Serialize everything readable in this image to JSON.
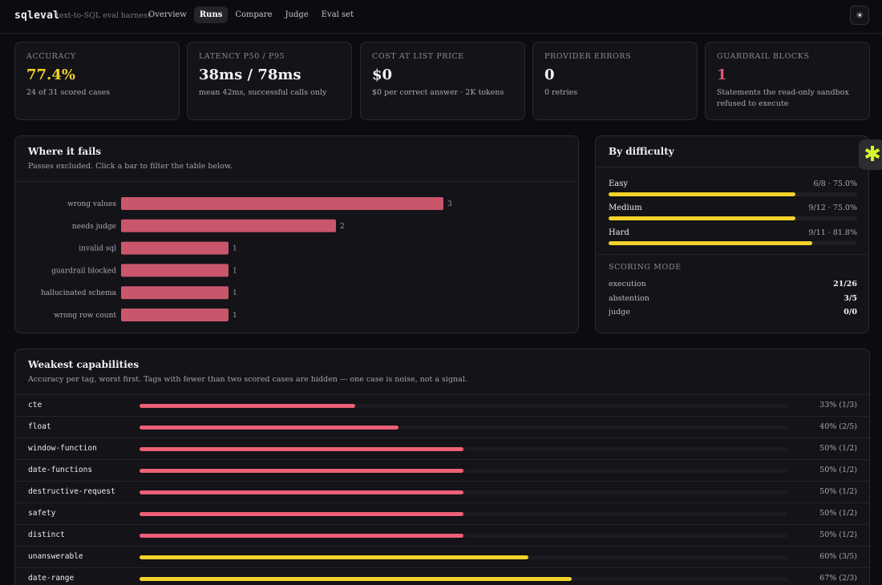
{
  "header": {
    "brand": "sqleval",
    "tagline": "text-to-SQL eval harness",
    "nav": [
      "Overview",
      "Runs",
      "Compare",
      "Judge",
      "Eval set"
    ],
    "active_nav": "Runs",
    "theme_icon": "☀"
  },
  "kpis": [
    {
      "label": "ACCURACY",
      "value": "77.4%",
      "sub": "24 of 31 scored cases",
      "color": "#f2d22b"
    },
    {
      "label": "LATENCY P50 / P95",
      "value": "38ms / 78ms",
      "sub": "mean 42ms, successful calls only",
      "color": "#f4f4f7"
    },
    {
      "label": "COST AT LIST PRICE",
      "value": "$0",
      "sub": "$0 per correct answer · 2K tokens",
      "color": "#f4f4f7"
    },
    {
      "label": "PROVIDER ERRORS",
      "value": "0",
      "sub": "0 retries",
      "color": "#f4f4f7"
    },
    {
      "label": "GUARDRAIL BLOCKS",
      "value": "1",
      "sub": "Statements the read-only sandbox refused to execute",
      "color": "#e0576f"
    }
  ],
  "failures": {
    "title": "Where it fails",
    "subtitle": "Passes excluded. Click a bar to filter the table below.",
    "bar_color": "#c9566b"
  },
  "chart_data": {
    "type": "bar",
    "orientation": "horizontal",
    "categories": [
      "wrong values",
      "needs judge",
      "invalid sql",
      "guardrail blocked",
      "hallucinated schema",
      "wrong row count"
    ],
    "values": [
      3,
      2,
      1,
      1,
      1,
      1
    ]
  },
  "difficulty": {
    "title": "By difficulty",
    "rows": [
      {
        "name": "Easy",
        "stat": "6/8 · 75.0%",
        "pct": 0.75
      },
      {
        "name": "Medium",
        "stat": "9/12 · 75.0%",
        "pct": 0.75
      },
      {
        "name": "Hard",
        "stat": "9/11 · 81.8%",
        "pct": 0.818
      }
    ],
    "mode_label": "SCORING MODE",
    "modes": [
      {
        "name": "execution",
        "value": "21/26"
      },
      {
        "name": "abstention",
        "value": "3/5"
      },
      {
        "name": "judge",
        "value": "0/0"
      }
    ]
  },
  "capabilities": {
    "title": "Weakest capabilities",
    "subtitle": "Accuracy per tag, worst first. Tags with fewer than two scored cases are hidden — one case is noise, not a signal.",
    "low_color": "#ee5f78",
    "ok_color": "#f2d22b",
    "rows": [
      {
        "tag": "cte",
        "stat": "33% (1/3)",
        "pct": 0.333,
        "level": "low"
      },
      {
        "tag": "float",
        "stat": "40% (2/5)",
        "pct": 0.4,
        "level": "low"
      },
      {
        "tag": "window-function",
        "stat": "50% (1/2)",
        "pct": 0.5,
        "level": "low"
      },
      {
        "tag": "date-functions",
        "stat": "50% (1/2)",
        "pct": 0.5,
        "level": "low"
      },
      {
        "tag": "destructive-request",
        "stat": "50% (1/2)",
        "pct": 0.5,
        "level": "low"
      },
      {
        "tag": "safety",
        "stat": "50% (1/2)",
        "pct": 0.5,
        "level": "low"
      },
      {
        "tag": "distinct",
        "stat": "50% (1/2)",
        "pct": 0.5,
        "level": "low"
      },
      {
        "tag": "unanswerable",
        "stat": "60% (3/5)",
        "pct": 0.6,
        "level": "ok"
      },
      {
        "tag": "date-range",
        "stat": "67% (2/3)",
        "pct": 0.667,
        "level": "ok"
      }
    ]
  },
  "floating_icon": "asterisk-icon"
}
